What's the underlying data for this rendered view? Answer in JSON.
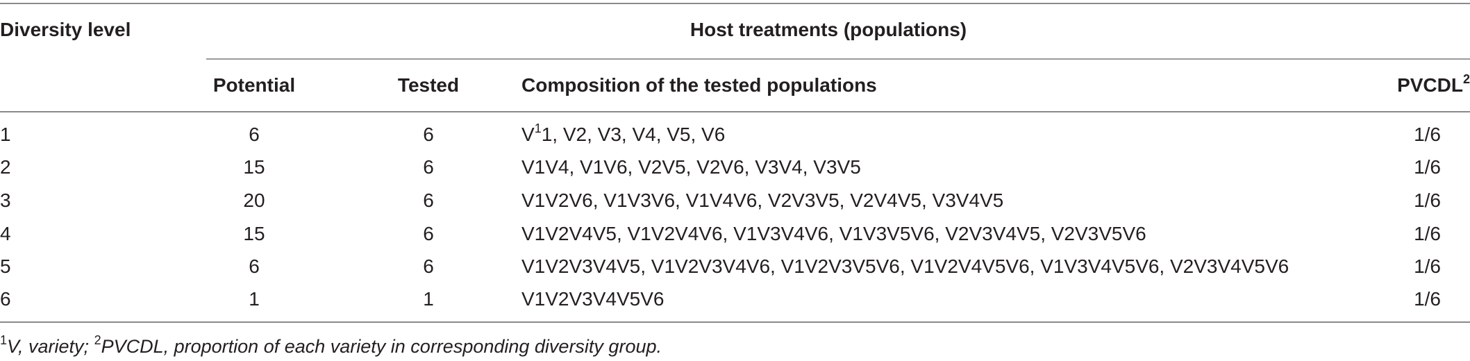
{
  "header": {
    "diversity_level": "Diversity level",
    "host_treatments": "Host treatments (populations)",
    "potential": "Potential",
    "tested": "Tested",
    "composition": "Composition of the tested populations",
    "pvcdl": "PVCDL",
    "pvcdl_sup": "2"
  },
  "rows": [
    {
      "level": "1",
      "potential": "6",
      "tested": "6",
      "composition_pre": "V",
      "composition_sup": "1",
      "composition": "1, V2, V3, V4, V5, V6",
      "pvcdl": "1/6"
    },
    {
      "level": "2",
      "potential": "15",
      "tested": "6",
      "composition": "V1V4, V1V6, V2V5, V2V6, V3V4, V3V5",
      "pvcdl": "1/6"
    },
    {
      "level": "3",
      "potential": "20",
      "tested": "6",
      "composition": "V1V2V6, V1V3V6, V1V4V6, V2V3V5, V2V4V5, V3V4V5",
      "pvcdl": "1/6"
    },
    {
      "level": "4",
      "potential": "15",
      "tested": "6",
      "composition": "V1V2V4V5, V1V2V4V6, V1V3V4V6, V1V3V5V6, V2V3V4V5, V2V3V5V6",
      "pvcdl": "1/6"
    },
    {
      "level": "5",
      "potential": "6",
      "tested": "6",
      "composition": "V1V2V3V4V5, V1V2V3V4V6, V1V2V3V5V6, V1V2V4V5V6, V1V3V4V5V6, V2V3V4V5V6",
      "pvcdl": "1/6"
    },
    {
      "level": "6",
      "potential": "1",
      "tested": "1",
      "composition": "V1V2V3V4V5V6",
      "pvcdl": "1/6"
    }
  ],
  "footnote": {
    "sup1": "1",
    "text1": "V, variety; ",
    "sup2": "2",
    "text2": "PVCDL, proportion of each variety in corresponding diversity group."
  }
}
